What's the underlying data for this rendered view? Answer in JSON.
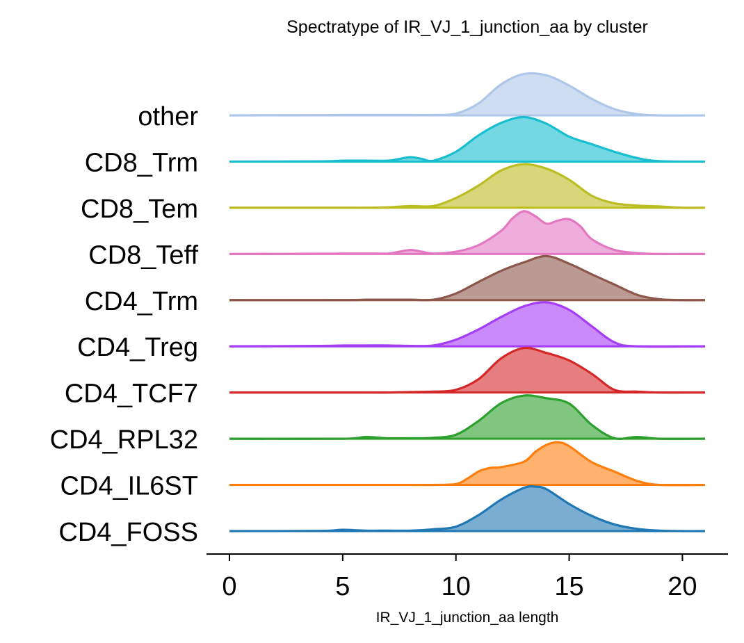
{
  "chart_data": {
    "type": "ridgeline",
    "title": "Spectratype of IR_VJ_1_junction_aa by cluster",
    "xlabel": "IR_VJ_1_junction_aa length",
    "ylabel": "",
    "xlim": [
      -1,
      22
    ],
    "xticks": [
      0,
      5,
      10,
      15,
      20
    ],
    "series": [
      {
        "name": "other",
        "color": "#aec7e8",
        "x": [
          0,
          4,
          5,
          6,
          7,
          8,
          9,
          10,
          11,
          12,
          13,
          14,
          15,
          16,
          17,
          18,
          19,
          21
        ],
        "density": [
          0,
          0.005,
          0.01,
          0.01,
          0.01,
          0.01,
          0.01,
          0.04,
          0.27,
          0.7,
          0.93,
          0.9,
          0.67,
          0.37,
          0.14,
          0.03,
          0,
          0
        ]
      },
      {
        "name": "CD8_Trm",
        "color": "#17becf",
        "x": [
          0,
          4,
          5,
          6,
          7,
          7.5,
          8,
          8.5,
          9,
          10,
          11,
          12,
          13,
          14,
          15,
          16,
          17,
          18,
          19,
          21
        ],
        "density": [
          0,
          0.005,
          0.02,
          0.02,
          0.02,
          0.06,
          0.1,
          0.06,
          0.02,
          0.22,
          0.59,
          0.87,
          1.0,
          0.85,
          0.56,
          0.39,
          0.22,
          0.08,
          0.01,
          0
        ]
      },
      {
        "name": "CD8_Tem",
        "color": "#bcbd22",
        "x": [
          0,
          5,
          6,
          7,
          8,
          9,
          10,
          11,
          12,
          13,
          14,
          15,
          16,
          17,
          18,
          19,
          20,
          21
        ],
        "density": [
          0,
          0,
          0,
          0.01,
          0.04,
          0.04,
          0.22,
          0.5,
          0.84,
          0.98,
          0.88,
          0.63,
          0.27,
          0.1,
          0.05,
          0.03,
          0,
          0
        ]
      },
      {
        "name": "CD8_Teff",
        "color": "#e377c2",
        "x": [
          0,
          4,
          5,
          6,
          7,
          7.5,
          8,
          8.5,
          9,
          10,
          11,
          12,
          12.5,
          13,
          13.5,
          14,
          14.5,
          15,
          15.5,
          16,
          17,
          18,
          19,
          21
        ],
        "density": [
          0,
          0.005,
          0.01,
          0.01,
          0.01,
          0.05,
          0.09,
          0.05,
          0.01,
          0.05,
          0.2,
          0.52,
          0.8,
          0.96,
          0.85,
          0.68,
          0.75,
          0.78,
          0.62,
          0.33,
          0.09,
          0.02,
          0,
          0
        ]
      },
      {
        "name": "CD4_Trm",
        "color": "#8c564b",
        "x": [
          0,
          5,
          6,
          7,
          8,
          9,
          10,
          11,
          12,
          13,
          14,
          15,
          16,
          17,
          18,
          19,
          20,
          21
        ],
        "density": [
          0,
          0,
          0.01,
          0.01,
          0.01,
          0.01,
          0.15,
          0.41,
          0.66,
          0.85,
          0.99,
          0.82,
          0.58,
          0.35,
          0.12,
          0.02,
          0,
          0
        ]
      },
      {
        "name": "CD4_Treg",
        "color": "#a53df5",
        "x": [
          0,
          4,
          5,
          6,
          7,
          8,
          9,
          10,
          11,
          12,
          13,
          14,
          15,
          16,
          17,
          18,
          21
        ],
        "density": [
          0,
          0.01,
          0.02,
          0.02,
          0.02,
          0.01,
          0.02,
          0.15,
          0.38,
          0.66,
          0.9,
          0.99,
          0.82,
          0.45,
          0.09,
          0,
          0
        ]
      },
      {
        "name": "CD4_TCF7",
        "color": "#d62728",
        "x": [
          0,
          6,
          7,
          8,
          9,
          10,
          11,
          12,
          13,
          14,
          15,
          16,
          17,
          18,
          19,
          21
        ],
        "density": [
          0,
          0,
          0,
          0.01,
          0.02,
          0.06,
          0.3,
          0.77,
          1.0,
          0.89,
          0.72,
          0.42,
          0.06,
          0.02,
          0,
          0
        ]
      },
      {
        "name": "CD4_RPL32",
        "color": "#2ca02c",
        "x": [
          0,
          5,
          6,
          7,
          8,
          9,
          10,
          11,
          12,
          13,
          14,
          15,
          16,
          17,
          18,
          19,
          21
        ],
        "density": [
          0,
          0,
          0.04,
          0.01,
          0.01,
          0.02,
          0.09,
          0.4,
          0.8,
          0.97,
          0.91,
          0.79,
          0.31,
          0.01,
          0.04,
          0,
          0
        ]
      },
      {
        "name": "CD4_IL6ST",
        "color": "#ff7f0e",
        "x": [
          0,
          8,
          9,
          10,
          10.5,
          11,
          11.5,
          12,
          13,
          13.5,
          14,
          14.5,
          15,
          16,
          17,
          18,
          19,
          21
        ],
        "density": [
          0,
          0,
          0,
          0.02,
          0.14,
          0.3,
          0.38,
          0.4,
          0.52,
          0.74,
          0.9,
          0.96,
          0.87,
          0.51,
          0.3,
          0.09,
          0,
          0
        ]
      },
      {
        "name": "CD4_FOSS",
        "color": "#1f77b4",
        "x": [
          0,
          4,
          5,
          6,
          7,
          8,
          9,
          10,
          11,
          12,
          13,
          13.5,
          14,
          15,
          16,
          17,
          18,
          19,
          20,
          21
        ],
        "density": [
          0,
          0.005,
          0.03,
          0.01,
          0.01,
          0.01,
          0.04,
          0.1,
          0.36,
          0.71,
          0.97,
          1.0,
          0.94,
          0.61,
          0.34,
          0.15,
          0.05,
          0.01,
          0,
          0
        ]
      }
    ]
  }
}
